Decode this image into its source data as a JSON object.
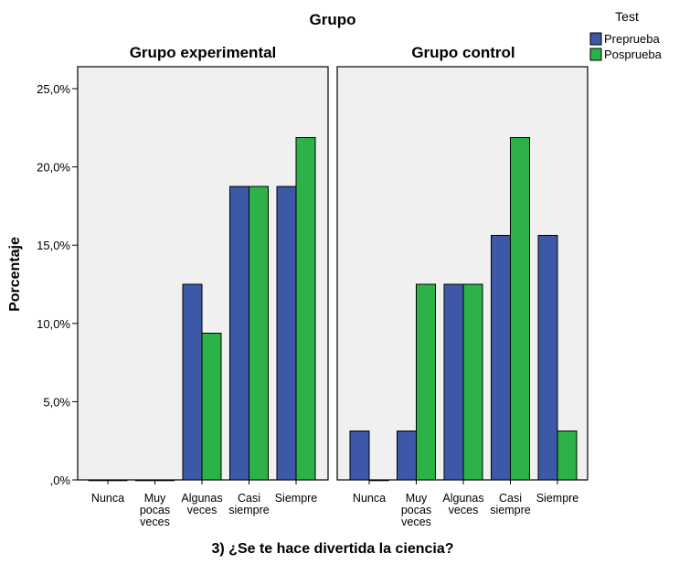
{
  "chart_data": {
    "type": "bar",
    "title": "Grupo",
    "xlabel": "3) ¿Se te hace divertida la ciencia?",
    "ylabel": "Porcentaje",
    "ylim": [
      0,
      25
    ],
    "yticks": [
      0,
      5,
      10,
      15,
      20,
      25
    ],
    "ytick_labels": [
      ",0%",
      "5,0%",
      "10,0%",
      "15,0%",
      "20,0%",
      "25,0%"
    ],
    "legend": {
      "title": "Test",
      "position": "top-right",
      "entries": [
        {
          "name": "Preprueba",
          "color": "#3e58a8"
        },
        {
          "name": "Posprueba",
          "color": "#2db24a"
        }
      ]
    },
    "categories": [
      [
        "Nunca"
      ],
      [
        "Muy",
        "pocas",
        "veces"
      ],
      [
        "Algunas",
        "veces"
      ],
      [
        "Casi",
        "siempre"
      ],
      [
        "Siempre"
      ]
    ],
    "panels": [
      {
        "title": "Grupo experimental",
        "series": [
          {
            "name": "Preprueba",
            "values": [
              0,
              0,
              12.5,
              18.75,
              18.75
            ]
          },
          {
            "name": "Posprueba",
            "values": [
              0,
              0,
              9.375,
              18.75,
              21.875
            ]
          }
        ]
      },
      {
        "title": "Grupo control",
        "series": [
          {
            "name": "Preprueba",
            "values": [
              3.125,
              3.125,
              12.5,
              15.625,
              15.625
            ]
          },
          {
            "name": "Posprueba",
            "values": [
              0,
              12.5,
              12.5,
              21.875,
              3.125
            ]
          }
        ]
      }
    ]
  }
}
